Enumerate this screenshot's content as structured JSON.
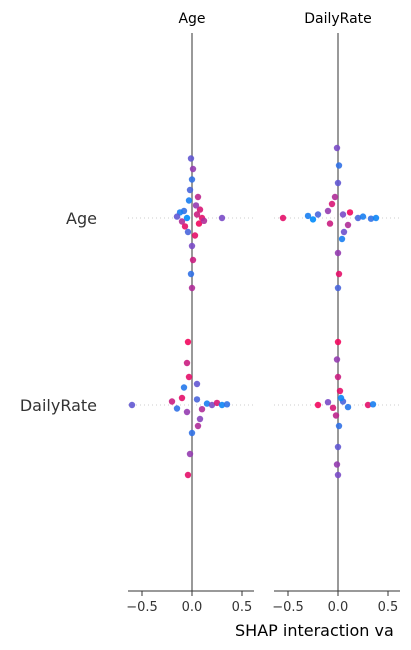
{
  "chart_data": {
    "type": "scatter",
    "title": "",
    "xlabel": "SHAP interaction va",
    "features": [
      "Age",
      "DailyRate"
    ],
    "panels": [
      {
        "title": "Age",
        "xlim": [
          -0.6,
          0.65
        ],
        "xticks": [
          -0.5,
          0.0,
          0.5
        ],
        "tick_labels": [
          "−0.5",
          "0.0",
          "0.5"
        ]
      },
      {
        "title": "DailyRate",
        "xlim": [
          -0.6,
          0.65
        ],
        "xticks": [
          -0.5,
          0.0,
          0.5
        ],
        "tick_labels": [
          "−0.5",
          "0.0",
          "0.5"
        ]
      }
    ],
    "colormap": [
      "#008bfb",
      "#7a4bc7",
      "#ff0052"
    ],
    "cells": [
      {
        "row": "Age",
        "col": "Age",
        "points": [
          [
            -0.08,
            0.1,
            0.2
          ],
          [
            -0.1,
            -0.05,
            0.7
          ],
          [
            -0.12,
            0.08,
            0.1
          ],
          [
            -0.15,
            0.02,
            0.4
          ],
          [
            -0.07,
            -0.12,
            0.9
          ],
          [
            0.05,
            0.05,
            0.8
          ],
          [
            0.07,
            -0.08,
            0.95
          ],
          [
            0.08,
            0.12,
            0.85
          ],
          [
            0.1,
            0.0,
            0.9
          ],
          [
            0.12,
            -0.04,
            0.7
          ],
          [
            0.3,
            0.0,
            0.5
          ],
          [
            -0.02,
            0.4,
            0.3
          ],
          [
            0.0,
            0.55,
            0.2
          ],
          [
            0.01,
            0.7,
            0.6
          ],
          [
            -0.01,
            0.85,
            0.4
          ],
          [
            0.0,
            -0.4,
            0.5
          ],
          [
            0.01,
            -0.6,
            0.8
          ],
          [
            -0.01,
            -0.8,
            0.2
          ],
          [
            0.0,
            -1.0,
            0.7
          ],
          [
            -0.03,
            0.25,
            0.1
          ],
          [
            0.03,
            -0.25,
            0.9
          ],
          [
            -0.05,
            0.0,
            0.0
          ],
          [
            0.04,
            0.18,
            0.6
          ],
          [
            -0.04,
            -0.2,
            0.3
          ],
          [
            0.06,
            0.3,
            0.75
          ]
        ]
      },
      {
        "row": "Age",
        "col": "DailyRate",
        "points": [
          [
            -0.55,
            0.0,
            0.9
          ],
          [
            -0.3,
            0.03,
            0.1
          ],
          [
            -0.25,
            -0.02,
            0.0
          ],
          [
            -0.2,
            0.05,
            0.3
          ],
          [
            -0.1,
            0.1,
            0.6
          ],
          [
            -0.08,
            -0.08,
            0.8
          ],
          [
            0.05,
            0.05,
            0.5
          ],
          [
            0.1,
            -0.1,
            0.7
          ],
          [
            0.12,
            0.08,
            0.95
          ],
          [
            0.2,
            0.0,
            0.3
          ],
          [
            0.25,
            0.02,
            0.1
          ],
          [
            0.33,
            -0.01,
            0.2
          ],
          [
            0.38,
            0.0,
            0.05
          ],
          [
            0.0,
            0.5,
            0.4
          ],
          [
            0.01,
            0.75,
            0.2
          ],
          [
            -0.01,
            1.0,
            0.5
          ],
          [
            0.0,
            -0.5,
            0.6
          ],
          [
            0.01,
            -0.8,
            0.9
          ],
          [
            0.0,
            -1.0,
            0.3
          ],
          [
            -0.03,
            0.3,
            0.7
          ],
          [
            0.04,
            -0.3,
            0.1
          ],
          [
            -0.06,
            0.2,
            0.85
          ],
          [
            0.06,
            -0.2,
            0.45
          ]
        ]
      },
      {
        "row": "DailyRate",
        "col": "Age",
        "points": [
          [
            -0.6,
            0.0,
            0.4
          ],
          [
            -0.2,
            0.05,
            0.8
          ],
          [
            -0.15,
            -0.05,
            0.2
          ],
          [
            -0.1,
            0.1,
            0.9
          ],
          [
            -0.05,
            -0.1,
            0.6
          ],
          [
            0.05,
            0.08,
            0.3
          ],
          [
            0.1,
            -0.06,
            0.7
          ],
          [
            0.15,
            0.02,
            0.1
          ],
          [
            0.2,
            0.0,
            0.5
          ],
          [
            0.25,
            0.03,
            0.85
          ],
          [
            0.3,
            0.0,
            0.05
          ],
          [
            0.35,
            0.01,
            0.2
          ],
          [
            -0.03,
            0.4,
            0.9
          ],
          [
            -0.05,
            0.6,
            0.8
          ],
          [
            -0.04,
            0.9,
            0.95
          ],
          [
            0.0,
            -0.4,
            0.2
          ],
          [
            -0.02,
            -0.7,
            0.6
          ],
          [
            -0.04,
            -1.0,
            0.9
          ],
          [
            0.05,
            0.3,
            0.4
          ],
          [
            0.06,
            -0.3,
            0.7
          ],
          [
            -0.08,
            0.25,
            0.15
          ],
          [
            0.08,
            -0.2,
            0.55
          ]
        ]
      },
      {
        "row": "DailyRate",
        "col": "DailyRate",
        "points": [
          [
            -0.2,
            0.0,
            0.95
          ],
          [
            -0.1,
            0.04,
            0.5
          ],
          [
            -0.05,
            -0.04,
            0.85
          ],
          [
            0.05,
            0.05,
            0.3
          ],
          [
            0.1,
            -0.03,
            0.15
          ],
          [
            0.3,
            0.0,
            0.9
          ],
          [
            0.35,
            0.01,
            0.1
          ],
          [
            0.0,
            0.4,
            0.8
          ],
          [
            -0.01,
            0.65,
            0.6
          ],
          [
            0.0,
            0.9,
            0.95
          ],
          [
            0.01,
            -0.3,
            0.2
          ],
          [
            0.0,
            -0.6,
            0.4
          ],
          [
            -0.01,
            -0.85,
            0.6
          ],
          [
            0.0,
            -1.0,
            0.5
          ],
          [
            0.02,
            0.2,
            0.9
          ],
          [
            -0.02,
            -0.15,
            0.75
          ],
          [
            0.03,
            0.1,
            0.05
          ]
        ]
      }
    ]
  }
}
